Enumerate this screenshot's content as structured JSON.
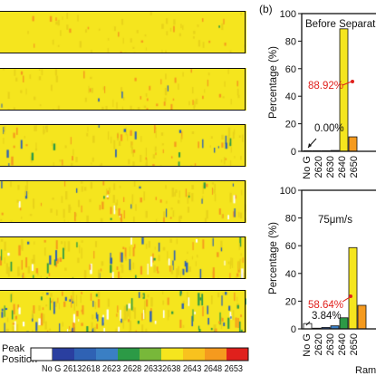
{
  "panel_label": "(b)",
  "colors": {
    "yellow": "#f5e51e",
    "orange": "#f59a1e",
    "green": "#2c9a46",
    "blue": "#2f62b4",
    "annotation_red": "#e0201c",
    "text": "#111111"
  },
  "map_strips": [
    {
      "index": 1,
      "variance": 0.15,
      "blue_density": 0.02,
      "white_density": 0.0
    },
    {
      "index": 2,
      "variance": 0.3,
      "blue_density": 0.05,
      "white_density": 0.0
    },
    {
      "index": 3,
      "variance": 0.5,
      "blue_density": 0.12,
      "white_density": 0.0
    },
    {
      "index": 4,
      "variance": 0.6,
      "blue_density": 0.15,
      "white_density": 0.04
    },
    {
      "index": 5,
      "variance": 0.8,
      "blue_density": 0.2,
      "white_density": 0.08
    },
    {
      "index": 6,
      "variance": 1.0,
      "blue_density": 0.3,
      "white_density": 0.12
    }
  ],
  "colorbar": {
    "title_line1": "Peak",
    "title_line2": "Position",
    "labels_text": "No G 26132618 2623 2628 26332638 2643 2648 2653",
    "segment_colors": [
      "#ffffff",
      "#2a3fa0",
      "#2f62b4",
      "#3a7fc4",
      "#2c9a46",
      "#78b83a",
      "#f5e51e",
      "#f8c21e",
      "#f59a1e",
      "#e0201c"
    ]
  },
  "chart_data": [
    {
      "type": "bar",
      "title": "Before Separation",
      "ylabel": "Percentage (%)",
      "xlabel": "",
      "ylim": [
        0,
        100
      ],
      "yticks": [
        "0",
        "20",
        "40",
        "60",
        "80",
        "100"
      ],
      "categories": [
        "No G",
        "2620",
        "2630",
        "2640",
        "2650"
      ],
      "bar_values": [
        0.0,
        0.0,
        0.2,
        0.6,
        88.92,
        10.5
      ],
      "bar_colors": [
        "#ffffff",
        "#2a3fa0",
        "#3a7fc4",
        "#2c9a46",
        "#f5e51e",
        "#f59a1e"
      ],
      "annotations": [
        {
          "text": "88.92%",
          "color": "red"
        },
        {
          "text": "0.00%",
          "color": "black"
        }
      ]
    },
    {
      "type": "bar",
      "title": "75μm/s",
      "ylabel": "Percentage (%)",
      "xlabel": "Ram",
      "ylim": [
        0,
        100
      ],
      "yticks": [
        "0",
        "20",
        "40",
        "60",
        "80",
        "100"
      ],
      "categories": [
        "No G",
        "2620",
        "2630",
        "2640",
        "2650"
      ],
      "bar_values": [
        3.84,
        0.5,
        1.0,
        2.2,
        8.0,
        58.64,
        17.0
      ],
      "bar_colors": [
        "#ffffff",
        "#2a3fa0",
        "#2f62b4",
        "#3a7fc4",
        "#2c9a46",
        "#f5e51e",
        "#f59a1e"
      ],
      "annotations": [
        {
          "text": "58.64%",
          "color": "red"
        },
        {
          "text": "3.84%",
          "color": "black"
        }
      ]
    }
  ]
}
